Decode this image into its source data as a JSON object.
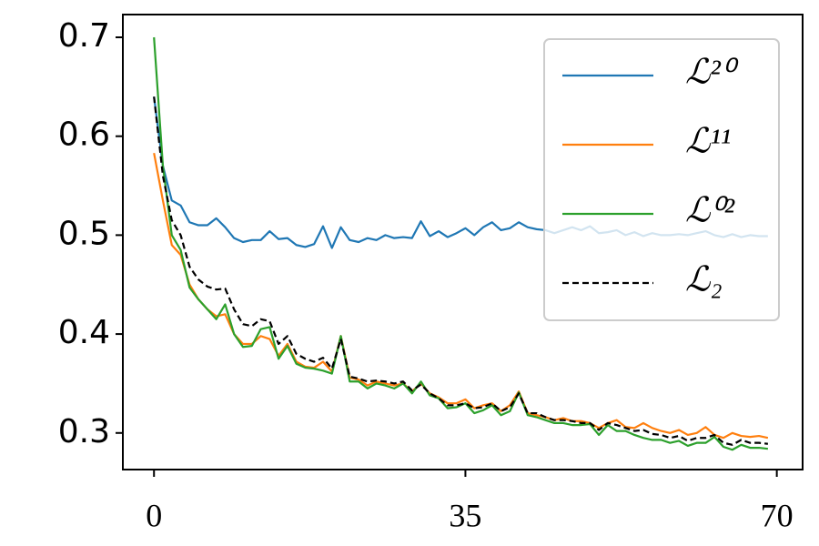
{
  "chart_data": {
    "type": "line",
    "x": [
      0,
      1,
      2,
      3,
      4,
      5,
      6,
      7,
      8,
      9,
      10,
      11,
      12,
      13,
      14,
      15,
      16,
      17,
      18,
      19,
      20,
      21,
      22,
      23,
      24,
      25,
      26,
      27,
      28,
      29,
      30,
      31,
      32,
      33,
      34,
      35,
      36,
      37,
      38,
      39,
      40,
      41,
      42,
      43,
      44,
      45,
      46,
      47,
      48,
      49,
      50,
      51,
      52,
      53,
      54,
      55,
      56,
      57,
      58,
      59,
      60,
      61,
      62,
      63,
      64,
      65,
      66,
      67,
      68,
      69
    ],
    "series": [
      {
        "name": "ℒ²⁰",
        "color": "#1f77b4",
        "dash": false,
        "values": [
          0.64,
          0.57,
          0.535,
          0.53,
          0.513,
          0.51,
          0.51,
          0.517,
          0.508,
          0.497,
          0.493,
          0.495,
          0.495,
          0.504,
          0.496,
          0.497,
          0.49,
          0.488,
          0.491,
          0.509,
          0.487,
          0.508,
          0.495,
          0.493,
          0.497,
          0.495,
          0.5,
          0.497,
          0.498,
          0.497,
          0.514,
          0.499,
          0.504,
          0.498,
          0.502,
          0.507,
          0.5,
          0.508,
          0.513,
          0.505,
          0.507,
          0.513,
          0.508,
          0.506,
          0.505,
          0.502,
          0.505,
          0.508,
          0.505,
          0.509,
          0.502,
          0.503,
          0.505,
          0.5,
          0.503,
          0.499,
          0.502,
          0.5,
          0.5,
          0.501,
          0.5,
          0.502,
          0.504,
          0.5,
          0.498,
          0.501,
          0.498,
          0.5,
          0.499,
          0.499
        ]
      },
      {
        "name": "ℒ¹¹",
        "color": "#ff7f0e",
        "dash": false,
        "values": [
          0.583,
          0.535,
          0.49,
          0.48,
          0.45,
          0.435,
          0.425,
          0.418,
          0.42,
          0.4,
          0.39,
          0.39,
          0.398,
          0.395,
          0.378,
          0.39,
          0.372,
          0.367,
          0.366,
          0.372,
          0.362,
          0.398,
          0.356,
          0.354,
          0.348,
          0.352,
          0.35,
          0.348,
          0.35,
          0.342,
          0.35,
          0.34,
          0.336,
          0.33,
          0.33,
          0.334,
          0.325,
          0.328,
          0.33,
          0.322,
          0.328,
          0.342,
          0.32,
          0.318,
          0.316,
          0.313,
          0.315,
          0.312,
          0.312,
          0.31,
          0.305,
          0.31,
          0.313,
          0.306,
          0.305,
          0.31,
          0.305,
          0.302,
          0.3,
          0.303,
          0.298,
          0.3,
          0.306,
          0.298,
          0.295,
          0.3,
          0.297,
          0.296,
          0.297,
          0.295
        ]
      },
      {
        "name": "ℒ⁰²",
        "color": "#2ca02c",
        "dash": false,
        "values": [
          0.7,
          0.57,
          0.5,
          0.485,
          0.447,
          0.435,
          0.425,
          0.415,
          0.43,
          0.4,
          0.387,
          0.388,
          0.405,
          0.407,
          0.375,
          0.388,
          0.37,
          0.366,
          0.365,
          0.363,
          0.36,
          0.398,
          0.352,
          0.352,
          0.345,
          0.35,
          0.348,
          0.345,
          0.35,
          0.34,
          0.352,
          0.338,
          0.335,
          0.325,
          0.326,
          0.33,
          0.32,
          0.323,
          0.328,
          0.318,
          0.322,
          0.341,
          0.318,
          0.316,
          0.313,
          0.31,
          0.31,
          0.308,
          0.308,
          0.309,
          0.298,
          0.308,
          0.302,
          0.302,
          0.298,
          0.295,
          0.293,
          0.293,
          0.29,
          0.292,
          0.287,
          0.29,
          0.29,
          0.296,
          0.286,
          0.283,
          0.288,
          0.285,
          0.285,
          0.284
        ]
      },
      {
        "name": "ℒ₂",
        "color": "#000000",
        "dash": true,
        "values": [
          0.64,
          0.56,
          0.515,
          0.5,
          0.468,
          0.455,
          0.448,
          0.445,
          0.446,
          0.425,
          0.41,
          0.408,
          0.415,
          0.413,
          0.39,
          0.398,
          0.38,
          0.375,
          0.372,
          0.376,
          0.365,
          0.395,
          0.357,
          0.355,
          0.352,
          0.353,
          0.352,
          0.35,
          0.352,
          0.343,
          0.349,
          0.34,
          0.335,
          0.328,
          0.328,
          0.33,
          0.325,
          0.326,
          0.33,
          0.322,
          0.326,
          0.34,
          0.32,
          0.32,
          0.316,
          0.313,
          0.313,
          0.312,
          0.31,
          0.31,
          0.303,
          0.31,
          0.308,
          0.305,
          0.302,
          0.303,
          0.299,
          0.298,
          0.295,
          0.297,
          0.292,
          0.295,
          0.295,
          0.298,
          0.29,
          0.288,
          0.293,
          0.29,
          0.29,
          0.289
        ]
      }
    ],
    "xlim": [
      -3.5,
      72.9
    ],
    "ylim": [
      0.263,
      0.723
    ],
    "xticks": [
      0,
      35,
      70
    ],
    "yticks": [
      0.3,
      0.4,
      0.5,
      0.6,
      0.7
    ],
    "legend": "upper right",
    "grid": false
  }
}
